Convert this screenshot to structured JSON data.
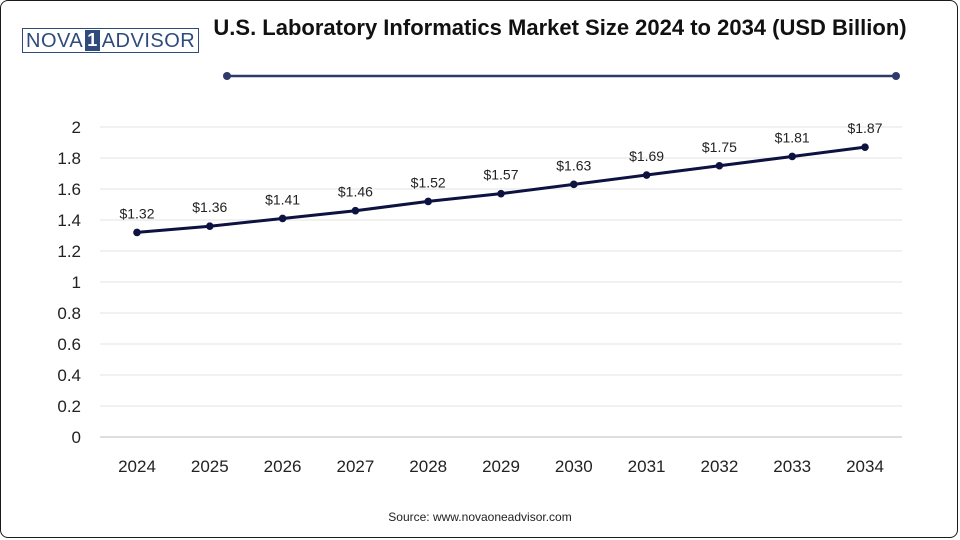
{
  "logo": {
    "left": "NOVA",
    "mid": "1",
    "right": "ADVISOR"
  },
  "chart_data": {
    "type": "line",
    "title": "U.S. Laboratory Informatics Market Size 2024 to 2034 (USD Billion)",
    "categories": [
      "2024",
      "2025",
      "2026",
      "2027",
      "2028",
      "2029",
      "2030",
      "2031",
      "2032",
      "2033",
      "2034"
    ],
    "series": [
      {
        "values": [
          1.32,
          1.36,
          1.41,
          1.46,
          1.52,
          1.57,
          1.63,
          1.69,
          1.75,
          1.81,
          1.87
        ],
        "labels": [
          "$1.32",
          "$1.36",
          "$1.41",
          "$1.46",
          "$1.52",
          "$1.57",
          "$1.63",
          "$1.69",
          "$1.75",
          "$1.81",
          "$1.87"
        ]
      }
    ],
    "ylim": [
      0,
      2
    ],
    "yticks": [
      "0",
      "0.2",
      "0.4",
      "0.6",
      "0.8",
      "1",
      "1.2",
      "1.4",
      "1.6",
      "1.8",
      "2"
    ],
    "grid": true,
    "line_color": "#0d1240"
  },
  "source": "Source: www.novaoneadvisor.com"
}
